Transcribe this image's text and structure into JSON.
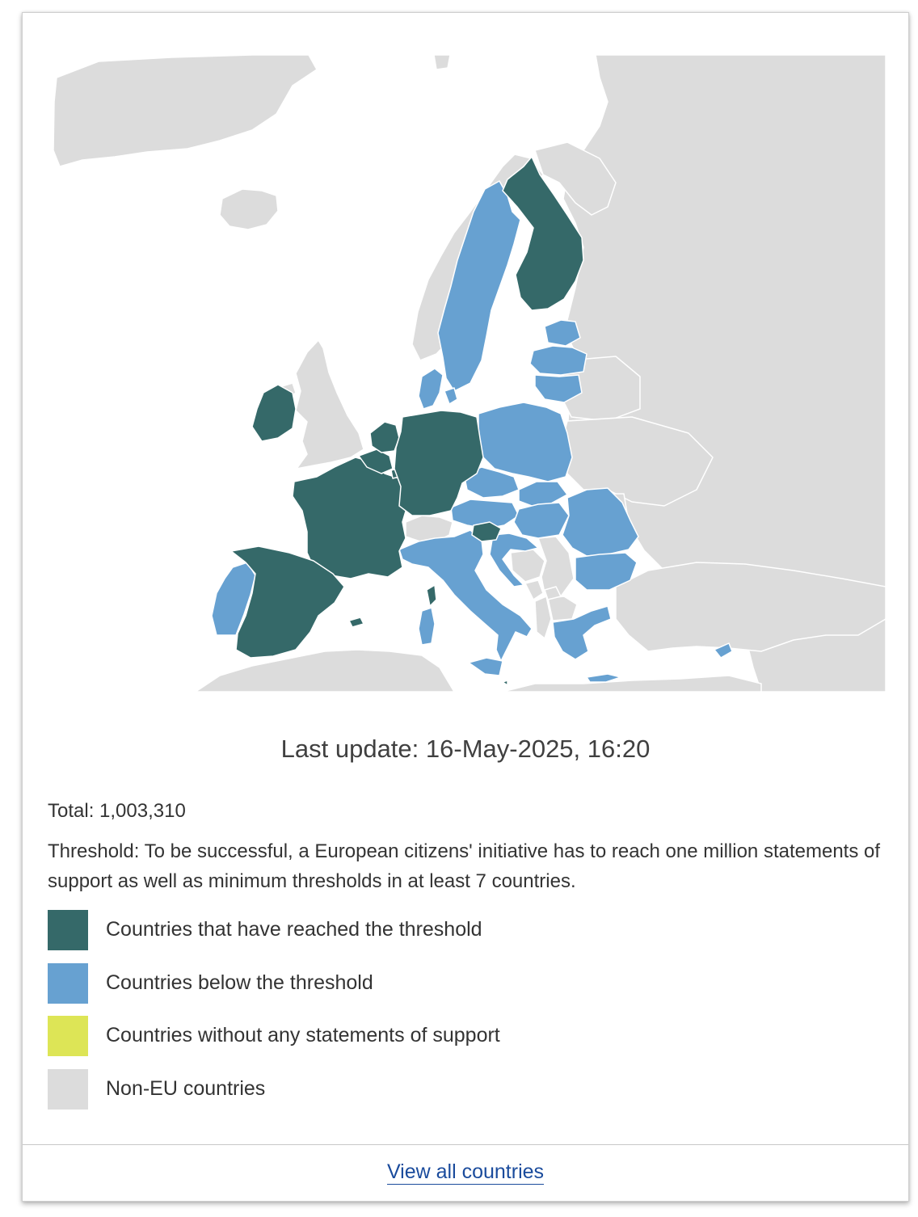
{
  "map": {
    "colors": {
      "reached": "#356969",
      "below": "#67a1d1",
      "none": "#dde556",
      "non_eu": "#dcdcdc",
      "border": "#ffffff"
    },
    "countries_reached": [
      "Ireland",
      "France",
      "Spain",
      "Belgium",
      "Netherlands",
      "Luxembourg",
      "Germany",
      "Finland",
      "Slovenia",
      "Malta"
    ],
    "countries_below": [
      "Portugal",
      "Denmark",
      "Sweden",
      "Estonia",
      "Latvia",
      "Lithuania",
      "Poland",
      "Czechia",
      "Slovakia",
      "Austria",
      "Hungary",
      "Croatia",
      "Romania",
      "Bulgaria",
      "Greece",
      "Italy",
      "Cyprus"
    ]
  },
  "last_update": "Last update: 16-May-2025, 16:20",
  "total": "Total: 1,003,310",
  "threshold": "Threshold: To be successful, a European citizens' initiative has to reach one million statements of support as well as minimum thresholds in at least 7 countries.",
  "legend": [
    {
      "label": "Countries that have reached the threshold",
      "color": "#356969"
    },
    {
      "label": "Countries below the threshold",
      "color": "#67a1d1"
    },
    {
      "label": "Countries without any statements of support",
      "color": "#dde556"
    },
    {
      "label": "Non-EU countries",
      "color": "#dcdcdc"
    }
  ],
  "footer": {
    "link_label": "View all countries"
  }
}
